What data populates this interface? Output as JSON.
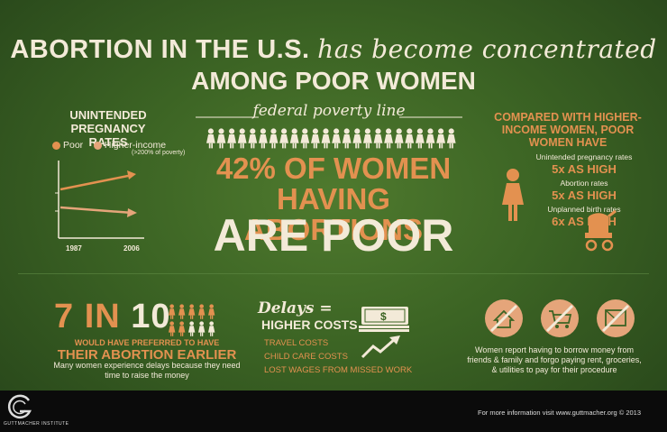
{
  "title": {
    "line1_bold": "ABORTION IN THE U.S.",
    "line1_serif": "has become concentrated",
    "line2": "AMONG POOR WOMEN"
  },
  "chart_data": {
    "type": "line",
    "title": "UNINTENDED PREGNANCY RATES",
    "categories": [
      "1987",
      "2006"
    ],
    "series": [
      {
        "name": "Poor",
        "values": [
          null,
          null
        ]
      },
      {
        "name": "Higher-income",
        "values": [
          null,
          null
        ]
      }
    ],
    "legend_note": "(>200% of poverty)",
    "colors": {
      "Poor": "#e39150",
      "Higher-income": "#e5a57a"
    }
  },
  "poverty": {
    "label": "federal poverty line",
    "stat_line1": "42% OF WOMEN",
    "stat_line2": "HAVING ABORTIONS",
    "stat_line3": "ARE POOR"
  },
  "compare": {
    "heading": "COMPARED WITH HIGHER-INCOME WOMEN, POOR WOMEN HAVE",
    "rates": [
      {
        "label": "Unintended pregnancy rates",
        "value": "5x AS HIGH"
      },
      {
        "label": "Abortion rates",
        "value": "5x AS HIGH"
      },
      {
        "label": "Unplanned birth rates",
        "value": "6x AS HIGH"
      }
    ]
  },
  "delays": {
    "seven": "7 IN",
    "ten": "10",
    "would": "WOULD HAVE PREFERRED TO HAVE",
    "their": "THEIR ABORTION EARLIER",
    "many": "Many women experience delays because they need time to raise the money",
    "delays_label": "Delays =",
    "higher": "HIGHER COSTS",
    "costs": [
      "TRAVEL COSTS",
      "CHILD CARE COSTS",
      "LOST WAGES FROM MISSED WORK"
    ]
  },
  "borrow": {
    "text": "Women report having to borrow money from friends & family and forgo paying rent, groceries, & utilities to pay for their procedure"
  },
  "footer": {
    "more": "For more information visit www.guttmacher.org © 2013",
    "logo": "GUTTMACHER INSTITUTE"
  },
  "colors": {
    "accent": "#e39150",
    "cream": "#f3ead8",
    "background": "#3c6424",
    "footer": "#0b0b0b"
  }
}
